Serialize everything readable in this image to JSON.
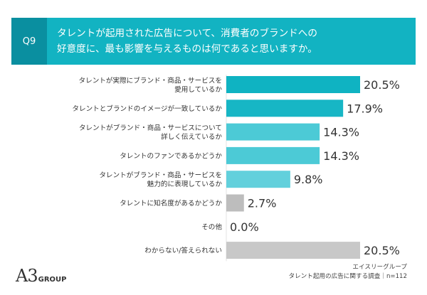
{
  "header": {
    "question_number": "Q9",
    "question_lines": [
      "タレントが起用された広告について、消費者のブランドへの",
      "好意度に、最も影響を与えるものは何であると思いますか。"
    ]
  },
  "chart_data": {
    "type": "bar",
    "orientation": "horizontal",
    "categories": [
      [
        "タレントが実際にブランド・商品・サービスを",
        "愛用しているか"
      ],
      [
        "タレントとブランドのイメージが一致しているか"
      ],
      [
        "タレントがブランド・商品・サービスについて",
        "詳しく伝えているか"
      ],
      [
        "タレントのファンであるかどうか"
      ],
      [
        "タレントがブランド・商品・サービスを",
        "魅力的に表現しているか"
      ],
      [
        "タレントに知名度があるかどうか"
      ],
      [
        "その他"
      ],
      [
        "わからない/答えられない"
      ]
    ],
    "values": [
      20.5,
      17.9,
      14.3,
      14.3,
      9.8,
      2.7,
      0.0,
      20.5
    ],
    "value_labels": [
      "20.5%",
      "17.9%",
      "14.3%",
      "14.3%",
      "9.8%",
      "2.7%",
      "0.0%",
      "20.5%"
    ],
    "bar_colors": [
      "#0fb3c2",
      "#17b6c5",
      "#4ccad6",
      "#4ccad6",
      "#62d0dc",
      "#bdbdbd",
      "#bdbdbd",
      "#c8c8c8"
    ],
    "unit": "%",
    "xlim": [
      0,
      20.5
    ]
  },
  "logo": {
    "mark": "A3",
    "word": "GROUP"
  },
  "source": {
    "line1": "エイスリーグループ",
    "line2": "タレント起用の広告に関する調査｜n=112"
  }
}
